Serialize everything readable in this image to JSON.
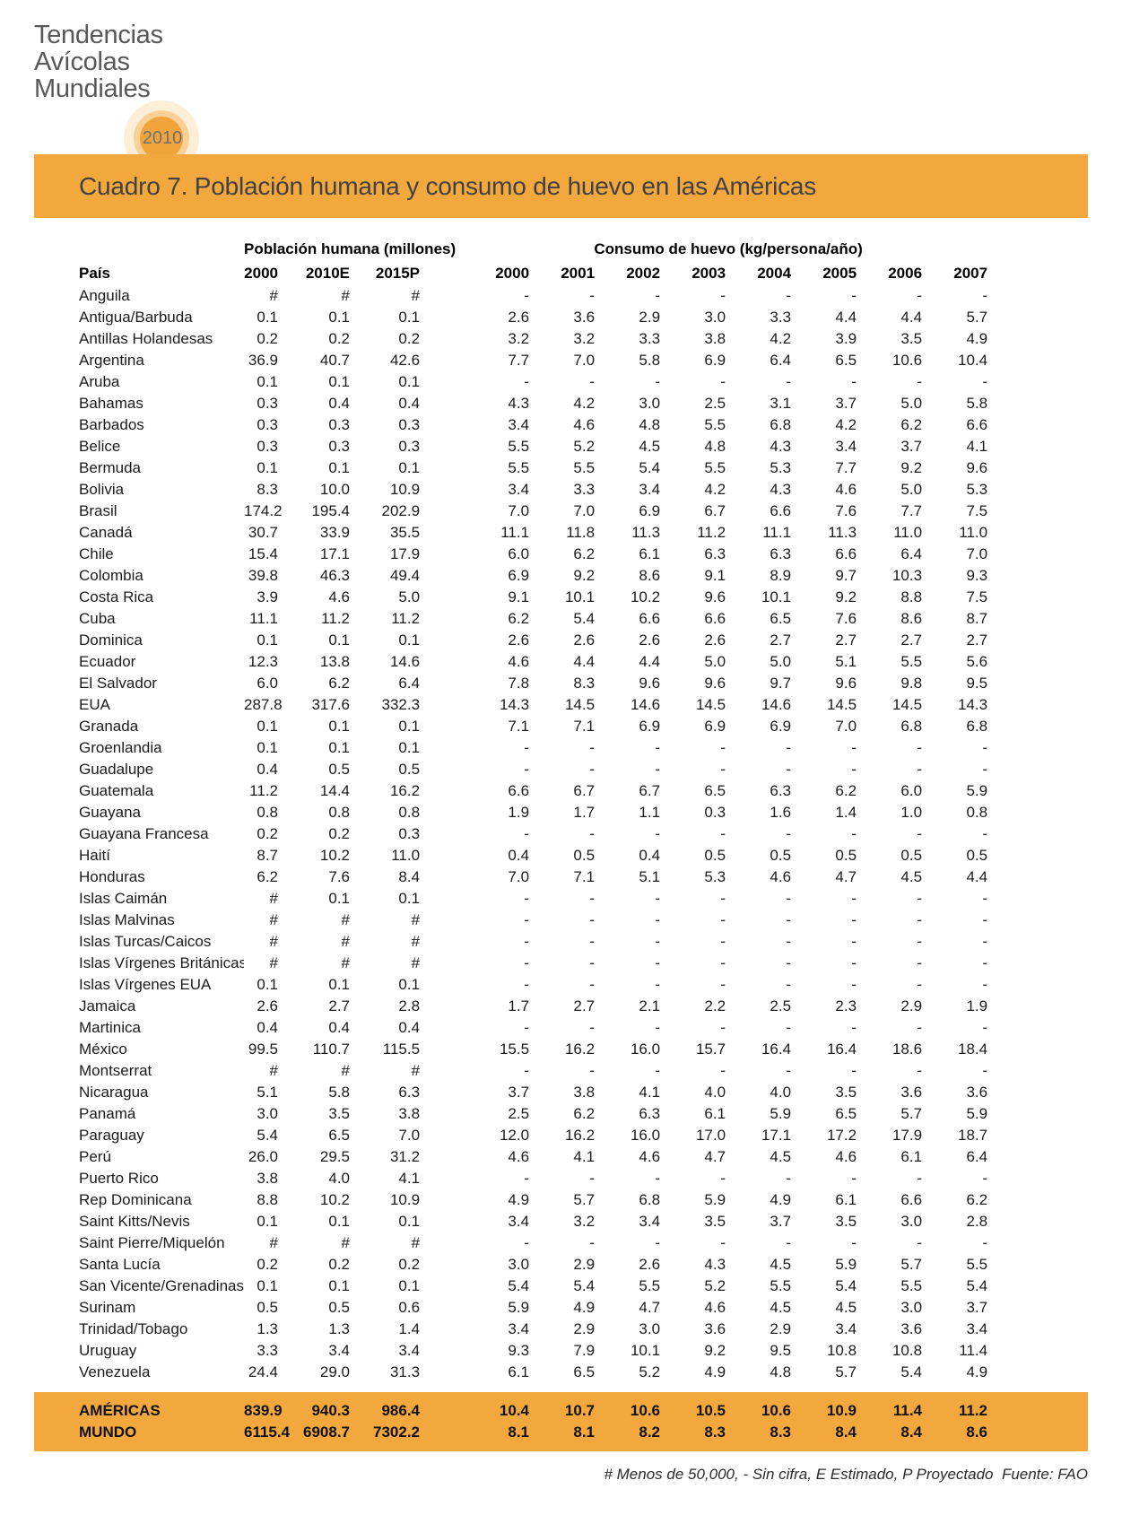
{
  "logo": {
    "title_lines": [
      "Tendencias",
      "Avícolas",
      "Mundiales"
    ],
    "line1": "Tendencias",
    "line2": "Avícolas",
    "line3": "Mundiales",
    "year": "2010"
  },
  "header": {
    "title": "Cuadro 7. Población humana y consumo de huevo en las Américas"
  },
  "table": {
    "country_header": "País",
    "population_group_header": "Población humana (millones)",
    "consumption_group_header": "Consumo de huevo (kg/persona/año)",
    "population_years": [
      "2000",
      "2010E",
      "2015P"
    ],
    "consumption_years": [
      "2000",
      "2001",
      "2002",
      "2003",
      "2004",
      "2005",
      "2006",
      "2007"
    ],
    "rows": [
      {
        "country": "Anguila",
        "population": [
          "#",
          "#",
          "#"
        ],
        "consumption": [
          "-",
          "-",
          "-",
          "-",
          "-",
          "-",
          "-",
          "-"
        ]
      },
      {
        "country": "Antigua/Barbuda",
        "population": [
          "0.1",
          "0.1",
          "0.1"
        ],
        "consumption": [
          "2.6",
          "3.6",
          "2.9",
          "3.0",
          "3.3",
          "4.4",
          "4.4",
          "5.7"
        ]
      },
      {
        "country": "Antillas Holandesas",
        "population": [
          "0.2",
          "0.2",
          "0.2"
        ],
        "consumption": [
          "3.2",
          "3.2",
          "3.3",
          "3.8",
          "4.2",
          "3.9",
          "3.5",
          "4.9"
        ]
      },
      {
        "country": "Argentina",
        "population": [
          "36.9",
          "40.7",
          "42.6"
        ],
        "consumption": [
          "7.7",
          "7.0",
          "5.8",
          "6.9",
          "6.4",
          "6.5",
          "10.6",
          "10.4"
        ]
      },
      {
        "country": "Aruba",
        "population": [
          "0.1",
          "0.1",
          "0.1"
        ],
        "consumption": [
          "-",
          "-",
          "-",
          "-",
          "-",
          "-",
          "-",
          "-"
        ]
      },
      {
        "country": "Bahamas",
        "population": [
          "0.3",
          "0.4",
          "0.4"
        ],
        "consumption": [
          "4.3",
          "4.2",
          "3.0",
          "2.5",
          "3.1",
          "3.7",
          "5.0",
          "5.8"
        ]
      },
      {
        "country": "Barbados",
        "population": [
          "0.3",
          "0.3",
          "0.3"
        ],
        "consumption": [
          "3.4",
          "4.6",
          "4.8",
          "5.5",
          "6.8",
          "4.2",
          "6.2",
          "6.6"
        ]
      },
      {
        "country": "Belice",
        "population": [
          "0.3",
          "0.3",
          "0.3"
        ],
        "consumption": [
          "5.5",
          "5.2",
          "4.5",
          "4.8",
          "4.3",
          "3.4",
          "3.7",
          "4.1"
        ]
      },
      {
        "country": "Bermuda",
        "population": [
          "0.1",
          "0.1",
          "0.1"
        ],
        "consumption": [
          "5.5",
          "5.5",
          "5.4",
          "5.5",
          "5.3",
          "7.7",
          "9.2",
          "9.6"
        ]
      },
      {
        "country": "Bolivia",
        "population": [
          "8.3",
          "10.0",
          "10.9"
        ],
        "consumption": [
          "3.4",
          "3.3",
          "3.4",
          "4.2",
          "4.3",
          "4.6",
          "5.0",
          "5.3"
        ]
      },
      {
        "country": "Brasil",
        "population": [
          "174.2",
          "195.4",
          "202.9"
        ],
        "consumption": [
          "7.0",
          "7.0",
          "6.9",
          "6.7",
          "6.6",
          "7.6",
          "7.7",
          "7.5"
        ]
      },
      {
        "country": "Canadá",
        "population": [
          "30.7",
          "33.9",
          "35.5"
        ],
        "consumption": [
          "11.1",
          "11.8",
          "11.3",
          "11.2",
          "11.1",
          "11.3",
          "11.0",
          "11.0"
        ]
      },
      {
        "country": "Chile",
        "population": [
          "15.4",
          "17.1",
          "17.9"
        ],
        "consumption": [
          "6.0",
          "6.2",
          "6.1",
          "6.3",
          "6.3",
          "6.6",
          "6.4",
          "7.0"
        ]
      },
      {
        "country": "Colombia",
        "population": [
          "39.8",
          "46.3",
          "49.4"
        ],
        "consumption": [
          "6.9",
          "9.2",
          "8.6",
          "9.1",
          "8.9",
          "9.7",
          "10.3",
          "9.3"
        ]
      },
      {
        "country": "Costa Rica",
        "population": [
          "3.9",
          "4.6",
          "5.0"
        ],
        "consumption": [
          "9.1",
          "10.1",
          "10.2",
          "9.6",
          "10.1",
          "9.2",
          "8.8",
          "7.5"
        ]
      },
      {
        "country": "Cuba",
        "population": [
          "11.1",
          "11.2",
          "11.2"
        ],
        "consumption": [
          "6.2",
          "5.4",
          "6.6",
          "6.6",
          "6.5",
          "7.6",
          "8.6",
          "8.7"
        ]
      },
      {
        "country": "Dominica",
        "population": [
          "0.1",
          "0.1",
          "0.1"
        ],
        "consumption": [
          "2.6",
          "2.6",
          "2.6",
          "2.6",
          "2.7",
          "2.7",
          "2.7",
          "2.7"
        ]
      },
      {
        "country": "Ecuador",
        "population": [
          "12.3",
          "13.8",
          "14.6"
        ],
        "consumption": [
          "4.6",
          "4.4",
          "4.4",
          "5.0",
          "5.0",
          "5.1",
          "5.5",
          "5.6"
        ]
      },
      {
        "country": "El Salvador",
        "population": [
          "6.0",
          "6.2",
          "6.4"
        ],
        "consumption": [
          "7.8",
          "8.3",
          "9.6",
          "9.6",
          "9.7",
          "9.6",
          "9.8",
          "9.5"
        ]
      },
      {
        "country": "EUA",
        "population": [
          "287.8",
          "317.6",
          "332.3"
        ],
        "consumption": [
          "14.3",
          "14.5",
          "14.6",
          "14.5",
          "14.6",
          "14.5",
          "14.5",
          "14.3"
        ]
      },
      {
        "country": "Granada",
        "population": [
          "0.1",
          "0.1",
          "0.1"
        ],
        "consumption": [
          "7.1",
          "7.1",
          "6.9",
          "6.9",
          "6.9",
          "7.0",
          "6.8",
          "6.8"
        ]
      },
      {
        "country": "Groenlandia",
        "population": [
          "0.1",
          "0.1",
          "0.1"
        ],
        "consumption": [
          "-",
          "-",
          "-",
          "-",
          "-",
          "-",
          "-",
          "-"
        ]
      },
      {
        "country": "Guadalupe",
        "population": [
          "0.4",
          "0.5",
          "0.5"
        ],
        "consumption": [
          "-",
          "-",
          "-",
          "-",
          "-",
          "-",
          "-",
          "-"
        ]
      },
      {
        "country": "Guatemala",
        "population": [
          "11.2",
          "14.4",
          "16.2"
        ],
        "consumption": [
          "6.6",
          "6.7",
          "6.7",
          "6.5",
          "6.3",
          "6.2",
          "6.0",
          "5.9"
        ]
      },
      {
        "country": "Guayana",
        "population": [
          "0.8",
          "0.8",
          "0.8"
        ],
        "consumption": [
          "1.9",
          "1.7",
          "1.1",
          "0.3",
          "1.6",
          "1.4",
          "1.0",
          "0.8"
        ]
      },
      {
        "country": "Guayana Francesa",
        "population": [
          "0.2",
          "0.2",
          "0.3"
        ],
        "consumption": [
          "-",
          "-",
          "-",
          "-",
          "-",
          "-",
          "-",
          "-"
        ]
      },
      {
        "country": "Haití",
        "population": [
          "8.7",
          "10.2",
          "11.0"
        ],
        "consumption": [
          "0.4",
          "0.5",
          "0.4",
          "0.5",
          "0.5",
          "0.5",
          "0.5",
          "0.5"
        ]
      },
      {
        "country": "Honduras",
        "population": [
          "6.2",
          "7.6",
          "8.4"
        ],
        "consumption": [
          "7.0",
          "7.1",
          "5.1",
          "5.3",
          "4.6",
          "4.7",
          "4.5",
          "4.4"
        ]
      },
      {
        "country": "Islas Caimán",
        "population": [
          "#",
          "0.1",
          "0.1"
        ],
        "consumption": [
          "-",
          "-",
          "-",
          "-",
          "-",
          "-",
          "-",
          "-"
        ]
      },
      {
        "country": "Islas Malvinas",
        "population": [
          "#",
          "#",
          "#"
        ],
        "consumption": [
          "-",
          "-",
          "-",
          "-",
          "-",
          "-",
          "-",
          "-"
        ]
      },
      {
        "country": "Islas Turcas/Caicos",
        "population": [
          "#",
          "#",
          "#"
        ],
        "consumption": [
          "-",
          "-",
          "-",
          "-",
          "-",
          "-",
          "-",
          "-"
        ]
      },
      {
        "country": "Islas Vírgenes Británicas",
        "population": [
          "#",
          "#",
          "#"
        ],
        "consumption": [
          "-",
          "-",
          "-",
          "-",
          "-",
          "-",
          "-",
          "-"
        ]
      },
      {
        "country": "Islas Vírgenes EUA",
        "population": [
          "0.1",
          "0.1",
          "0.1"
        ],
        "consumption": [
          "-",
          "-",
          "-",
          "-",
          "-",
          "-",
          "-",
          "-"
        ]
      },
      {
        "country": "Jamaica",
        "population": [
          "2.6",
          "2.7",
          "2.8"
        ],
        "consumption": [
          "1.7",
          "2.7",
          "2.1",
          "2.2",
          "2.5",
          "2.3",
          "2.9",
          "1.9"
        ]
      },
      {
        "country": "Martinica",
        "population": [
          "0.4",
          "0.4",
          "0.4"
        ],
        "consumption": [
          "-",
          "-",
          "-",
          "-",
          "-",
          "-",
          "-",
          "-"
        ]
      },
      {
        "country": "México",
        "population": [
          "99.5",
          "110.7",
          "115.5"
        ],
        "consumption": [
          "15.5",
          "16.2",
          "16.0",
          "15.7",
          "16.4",
          "16.4",
          "18.6",
          "18.4"
        ]
      },
      {
        "country": "Montserrat",
        "population": [
          "#",
          "#",
          "#"
        ],
        "consumption": [
          "-",
          "-",
          "-",
          "-",
          "-",
          "-",
          "-",
          "-"
        ]
      },
      {
        "country": "Nicaragua",
        "population": [
          "5.1",
          "5.8",
          "6.3"
        ],
        "consumption": [
          "3.7",
          "3.8",
          "4.1",
          "4.0",
          "4.0",
          "3.5",
          "3.6",
          "3.6"
        ]
      },
      {
        "country": "Panamá",
        "population": [
          "3.0",
          "3.5",
          "3.8"
        ],
        "consumption": [
          "2.5",
          "6.2",
          "6.3",
          "6.1",
          "5.9",
          "6.5",
          "5.7",
          "5.9"
        ]
      },
      {
        "country": "Paraguay",
        "population": [
          "5.4",
          "6.5",
          "7.0"
        ],
        "consumption": [
          "12.0",
          "16.2",
          "16.0",
          "17.0",
          "17.1",
          "17.2",
          "17.9",
          "18.7"
        ]
      },
      {
        "country": "Perú",
        "population": [
          "26.0",
          "29.5",
          "31.2"
        ],
        "consumption": [
          "4.6",
          "4.1",
          "4.6",
          "4.7",
          "4.5",
          "4.6",
          "6.1",
          "6.4"
        ]
      },
      {
        "country": "Puerto Rico",
        "population": [
          "3.8",
          "4.0",
          "4.1"
        ],
        "consumption": [
          "-",
          "-",
          "-",
          "-",
          "-",
          "-",
          "-",
          "-"
        ]
      },
      {
        "country": "Rep Dominicana",
        "population": [
          "8.8",
          "10.2",
          "10.9"
        ],
        "consumption": [
          "4.9",
          "5.7",
          "6.8",
          "5.9",
          "4.9",
          "6.1",
          "6.6",
          "6.2"
        ]
      },
      {
        "country": "Saint Kitts/Nevis",
        "population": [
          "0.1",
          "0.1",
          "0.1"
        ],
        "consumption": [
          "3.4",
          "3.2",
          "3.4",
          "3.5",
          "3.7",
          "3.5",
          "3.0",
          "2.8"
        ]
      },
      {
        "country": "Saint Pierre/Miquelón",
        "population": [
          "#",
          "#",
          "#"
        ],
        "consumption": [
          "-",
          "-",
          "-",
          "-",
          "-",
          "-",
          "-",
          "-"
        ]
      },
      {
        "country": "Santa Lucía",
        "population": [
          "0.2",
          "0.2",
          "0.2"
        ],
        "consumption": [
          "3.0",
          "2.9",
          "2.6",
          "4.3",
          "4.5",
          "5.9",
          "5.7",
          "5.5"
        ]
      },
      {
        "country": "San Vicente/Grenadinas",
        "population": [
          "0.1",
          "0.1",
          "0.1"
        ],
        "consumption": [
          "5.4",
          "5.4",
          "5.5",
          "5.2",
          "5.5",
          "5.4",
          "5.5",
          "5.4"
        ]
      },
      {
        "country": "Surinam",
        "population": [
          "0.5",
          "0.5",
          "0.6"
        ],
        "consumption": [
          "5.9",
          "4.9",
          "4.7",
          "4.6",
          "4.5",
          "4.5",
          "3.0",
          "3.7"
        ]
      },
      {
        "country": "Trinidad/Tobago",
        "population": [
          "1.3",
          "1.3",
          "1.4"
        ],
        "consumption": [
          "3.4",
          "2.9",
          "3.0",
          "3.6",
          "2.9",
          "3.4",
          "3.6",
          "3.4"
        ]
      },
      {
        "country": "Uruguay",
        "population": [
          "3.3",
          "3.4",
          "3.4"
        ],
        "consumption": [
          "9.3",
          "7.9",
          "10.1",
          "9.2",
          "9.5",
          "10.8",
          "10.8",
          "11.4"
        ]
      },
      {
        "country": "Venezuela",
        "population": [
          "24.4",
          "29.0",
          "31.3"
        ],
        "consumption": [
          "6.1",
          "6.5",
          "5.2",
          "4.9",
          "4.8",
          "5.7",
          "5.4",
          "4.9"
        ]
      }
    ],
    "totals": [
      {
        "country": "AMÉRICAS",
        "population": [
          "839.9",
          "940.3",
          "986.4"
        ],
        "consumption": [
          "10.4",
          "10.7",
          "10.6",
          "10.5",
          "10.6",
          "10.9",
          "11.4",
          "11.2"
        ]
      },
      {
        "country": "MUNDO",
        "population": [
          "6115.4",
          "6908.7",
          "7302.2"
        ],
        "consumption": [
          "8.1",
          "8.1",
          "8.2",
          "8.3",
          "8.3",
          "8.4",
          "8.4",
          "8.6"
        ]
      }
    ]
  },
  "footnote": "# Menos de 50,000, - Sin cifra, E Estimado, P Proyectado  Fuente: FAO",
  "colors": {
    "accent_orange": "#F3A83D",
    "logo_ring_inner": "#F2A43C",
    "logo_text": "#58585B",
    "title_text": "#414143",
    "body_text": "#1B1B1B"
  }
}
